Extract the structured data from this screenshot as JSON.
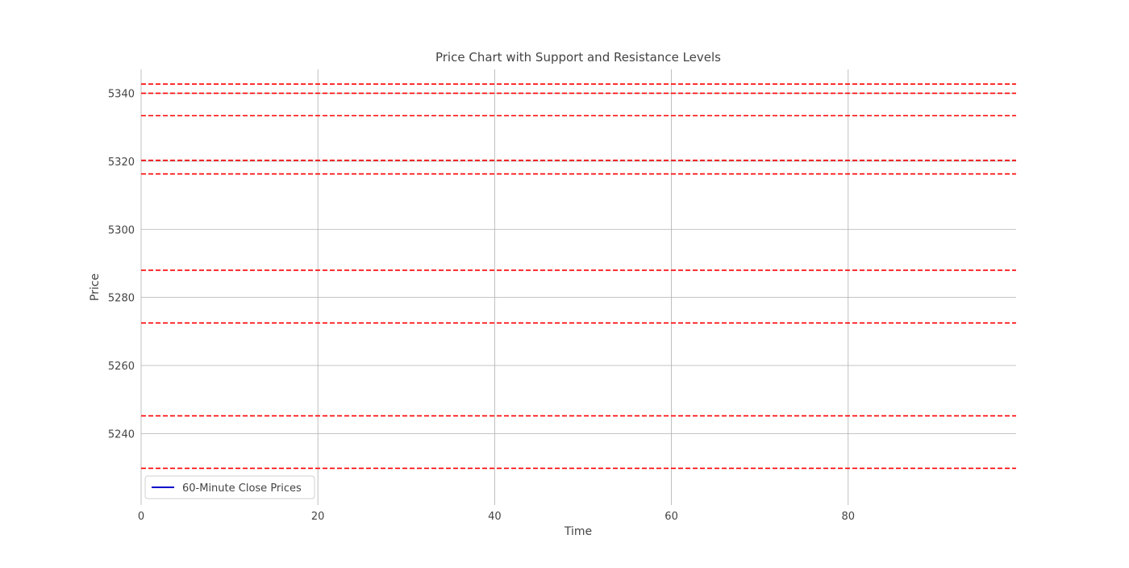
{
  "chart_data": {
    "type": "line",
    "title": "Price Chart with Support and Resistance Levels",
    "xlabel": "Time",
    "ylabel": "Price",
    "xlim": [
      0,
      99
    ],
    "ylim": [
      5219,
      5347
    ],
    "x_ticks": [
      0,
      20,
      40,
      60,
      80
    ],
    "x_tick_labels": [
      "0",
      "20",
      "40",
      "60",
      "80"
    ],
    "y_ticks": [
      5240,
      5260,
      5280,
      5300,
      5320,
      5340
    ],
    "y_tick_labels": [
      "5240",
      "5260",
      "5280",
      "5300",
      "5320",
      "5340"
    ],
    "grid": true,
    "legend": "lower-left",
    "series": [
      {
        "name": "60-Minute Close Prices",
        "color": "#0000cc",
        "x": [],
        "y": []
      }
    ],
    "horizontal_levels": {
      "color": "#ff0000",
      "style": "dashed",
      "values": [
        5342.7,
        5340.0,
        5333.4,
        5320.3,
        5316.3,
        5288.0,
        5272.5,
        5245.2,
        5229.8
      ]
    }
  }
}
